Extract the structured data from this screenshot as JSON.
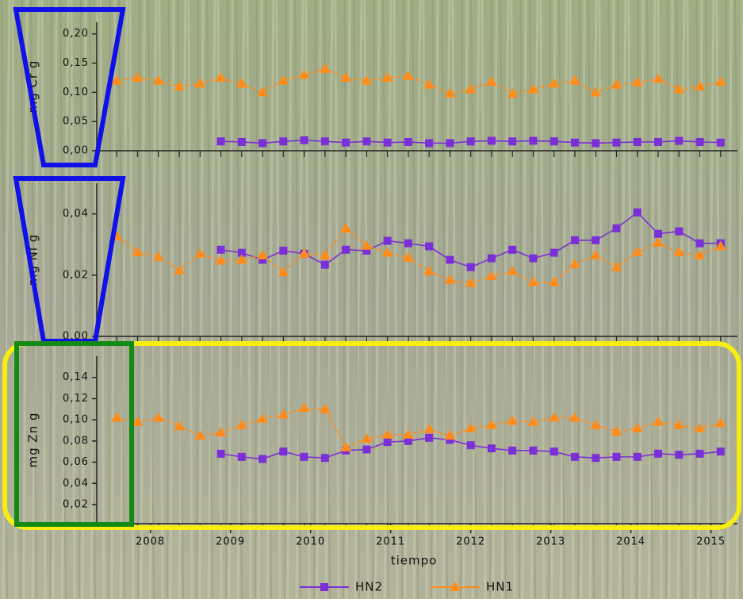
{
  "chart_data": [
    {
      "type": "line",
      "ylabel": "mg Cr g",
      "x": [
        2007.58,
        2007.84,
        2008.1,
        2008.36,
        2008.62,
        2008.88,
        2009.14,
        2009.4,
        2009.66,
        2009.92,
        2010.18,
        2010.44,
        2010.7,
        2010.96,
        2011.22,
        2011.48,
        2011.74,
        2012.0,
        2012.26,
        2012.52,
        2012.78,
        2013.04,
        2013.3,
        2013.56,
        2013.82,
        2014.08,
        2014.34,
        2014.6,
        2014.86,
        2015.12
      ],
      "series": [
        {
          "color": "#7b2fd6",
          "marker": "square",
          "values": [
            null,
            null,
            null,
            null,
            null,
            0.016,
            0.015,
            0.013,
            0.016,
            0.018,
            0.016,
            0.014,
            0.016,
            0.014,
            0.015,
            0.013,
            0.013,
            0.016,
            0.017,
            0.016,
            0.017,
            0.016,
            0.014,
            0.013,
            0.014,
            0.015,
            0.015,
            0.017,
            0.015,
            0.014
          ]
        },
        {
          "color": "#ff8c1a",
          "marker": "triangle",
          "values": [
            0.12,
            0.125,
            0.12,
            0.11,
            0.115,
            0.125,
            0.115,
            0.1,
            0.12,
            0.13,
            0.14,
            0.125,
            0.12,
            0.125,
            0.128,
            0.113,
            0.098,
            0.105,
            0.118,
            0.098,
            0.105,
            0.115,
            0.12,
            0.1,
            0.113,
            0.117,
            0.123,
            0.105,
            0.11,
            0.118
          ]
        }
      ],
      "xlim": [
        2007.33,
        2015.33
      ],
      "ylim": [
        0,
        0.22
      ],
      "yticks": [
        {
          "value": 0,
          "label": "0,00"
        },
        {
          "value": 0.05,
          "label": "0,05"
        },
        {
          "value": 0.1,
          "label": "0,10"
        },
        {
          "value": 0.15,
          "label": "0,15"
        },
        {
          "value": 0.2,
          "label": "0,20"
        }
      ]
    },
    {
      "type": "line",
      "ylabel": "mg Ni g",
      "x": [
        2007.58,
        2007.84,
        2008.1,
        2008.36,
        2008.62,
        2008.88,
        2009.14,
        2009.4,
        2009.66,
        2009.92,
        2010.18,
        2010.44,
        2010.7,
        2010.96,
        2011.22,
        2011.48,
        2011.74,
        2012.0,
        2012.26,
        2012.52,
        2012.78,
        2013.04,
        2013.3,
        2013.56,
        2013.82,
        2014.08,
        2014.34,
        2014.6,
        2014.86,
        2015.12
      ],
      "series": [
        {
          "color": "#7b2fd6",
          "marker": "square",
          "values": [
            null,
            null,
            null,
            null,
            null,
            0.0283,
            0.0273,
            0.025,
            0.028,
            0.027,
            0.0234,
            0.0283,
            0.028,
            0.0312,
            0.0304,
            0.0294,
            0.025,
            0.0226,
            0.0255,
            0.0283,
            0.0255,
            0.0273,
            0.0314,
            0.0314,
            0.0353,
            0.0405,
            0.0335,
            0.0343,
            0.0304,
            0.0304
          ]
        },
        {
          "color": "#ff8c1a",
          "marker": "triangle",
          "values": [
            0.0327,
            0.0275,
            0.026,
            0.0215,
            0.027,
            0.0247,
            0.025,
            0.0265,
            0.021,
            0.027,
            0.0265,
            0.0353,
            0.0296,
            0.0273,
            0.0257,
            0.0213,
            0.0184,
            0.0174,
            0.0197,
            0.0213,
            0.0177,
            0.0177,
            0.0236,
            0.0265,
            0.0226,
            0.0275,
            0.0306,
            0.0275,
            0.0265,
            0.0294
          ]
        }
      ],
      "xlim": [
        2007.33,
        2015.33
      ],
      "ylim": [
        0,
        0.05
      ],
      "yticks": [
        {
          "value": 0,
          "label": "0,00"
        },
        {
          "value": 0.02,
          "label": "0,02"
        },
        {
          "value": 0.04,
          "label": "0,04"
        }
      ]
    },
    {
      "type": "line",
      "ylabel": "mg Zn g",
      "xlabel": "tiempo",
      "x": [
        2007.58,
        2007.84,
        2008.1,
        2008.36,
        2008.62,
        2008.88,
        2009.14,
        2009.4,
        2009.66,
        2009.92,
        2010.18,
        2010.44,
        2010.7,
        2010.96,
        2011.22,
        2011.48,
        2011.74,
        2012.0,
        2012.26,
        2012.52,
        2012.78,
        2013.04,
        2013.3,
        2013.56,
        2013.82,
        2014.08,
        2014.34,
        2014.6,
        2014.86,
        2015.12
      ],
      "series": [
        {
          "name": "HN2",
          "color": "#7b2fd6",
          "marker": "square",
          "values": [
            null,
            null,
            null,
            null,
            null,
            0.068,
            0.065,
            0.063,
            0.07,
            0.065,
            0.064,
            0.071,
            0.072,
            0.079,
            0.08,
            0.083,
            0.081,
            0.076,
            0.073,
            0.071,
            0.071,
            0.07,
            0.065,
            0.064,
            0.065,
            0.065,
            0.068,
            0.067,
            0.068,
            0.07
          ]
        },
        {
          "name": "HN1",
          "color": "#ff8c1a",
          "marker": "triangle",
          "values": [
            0.102,
            0.098,
            0.102,
            0.094,
            0.085,
            0.088,
            0.095,
            0.101,
            0.105,
            0.111,
            0.11,
            0.074,
            0.082,
            0.086,
            0.086,
            0.091,
            0.085,
            0.092,
            0.095,
            0.099,
            0.098,
            0.102,
            0.102,
            0.095,
            0.089,
            0.092,
            0.098,
            0.095,
            0.092,
            0.097
          ]
        }
      ],
      "xlim": [
        2007.33,
        2015.33
      ],
      "ylim": [
        0.002,
        0.16
      ],
      "xticks": [
        2008,
        2009,
        2010,
        2011,
        2012,
        2013,
        2014,
        2015
      ],
      "yticks": [
        {
          "value": 0.02,
          "label": "0,02"
        },
        {
          "value": 0.04,
          "label": "0,04"
        },
        {
          "value": 0.06,
          "label": "0,06"
        },
        {
          "value": 0.08,
          "label": "0,08"
        },
        {
          "value": 0.1,
          "label": "0,10"
        },
        {
          "value": 0.12,
          "label": "0,12"
        },
        {
          "value": 0.14,
          "label": "0,14"
        }
      ]
    }
  ]
}
